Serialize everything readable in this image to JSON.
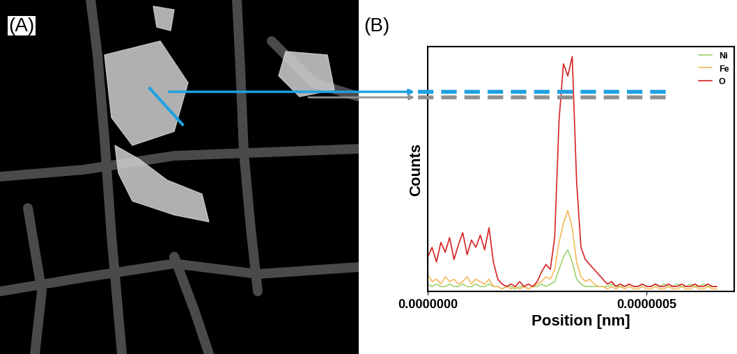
{
  "panel_labels": {
    "A": "(A)",
    "B": "(B)"
  },
  "chart_data": {
    "type": "line",
    "x_label": "Position [nm]",
    "y_label": "Counts",
    "x": [
      0.0,
      1e-08,
      2e-08,
      3e-08,
      4e-08,
      5e-08,
      6e-08,
      7e-08,
      8e-08,
      9e-08,
      1e-07,
      1.1e-07,
      1.2e-07,
      1.3e-07,
      1.4e-07,
      1.5e-07,
      1.6e-07,
      1.7e-07,
      1.8e-07,
      1.9e-07,
      2e-07,
      2.1e-07,
      2.2e-07,
      2.3e-07,
      2.4e-07,
      2.5e-07,
      2.6e-07,
      2.7e-07,
      2.8e-07,
      2.9e-07,
      3e-07,
      3.1e-07,
      3.2e-07,
      3.3e-07,
      3.4e-07,
      3.5e-07,
      3.6e-07,
      3.7e-07,
      3.8e-07,
      3.9e-07,
      4e-07,
      4.1e-07,
      4.2e-07,
      4.3e-07,
      4.4e-07,
      4.5e-07,
      4.6e-07,
      4.7e-07,
      4.8e-07,
      4.9e-07,
      5e-07,
      5.1e-07,
      5.2e-07,
      5.3e-07,
      5.4e-07,
      5.5e-07,
      5.6e-07,
      5.7e-07,
      5.8e-07,
      5.9e-07,
      6e-07,
      6.1e-07,
      6.2e-07,
      6.3e-07,
      6.4e-07,
      6.5e-07,
      6.6e-07
    ],
    "series": [
      {
        "name": "Ni",
        "color": "#9ed36a",
        "values": [
          3,
          2,
          3,
          2,
          2,
          3,
          2,
          2,
          3,
          2,
          2,
          3,
          2,
          2,
          3,
          2,
          2,
          1,
          2,
          2,
          1,
          2,
          2,
          1,
          2,
          2,
          3,
          2,
          3,
          4,
          9,
          14,
          17,
          12,
          5,
          3,
          2,
          2,
          2,
          2,
          2,
          2,
          3,
          2,
          2,
          2,
          3,
          2,
          2,
          3,
          2,
          2,
          3,
          2,
          3,
          2,
          2,
          3,
          2,
          2,
          3,
          2,
          2,
          3,
          2,
          2,
          2
        ]
      },
      {
        "name": "Fe",
        "color": "#f5b85a",
        "values": [
          7,
          4,
          5,
          3,
          6,
          4,
          5,
          3,
          4,
          6,
          3,
          5,
          4,
          3,
          5,
          2,
          2,
          1,
          2,
          1,
          2,
          1,
          2,
          1,
          2,
          3,
          4,
          6,
          5,
          9,
          20,
          28,
          33,
          26,
          12,
          6,
          4,
          5,
          3,
          2,
          2,
          1,
          2,
          1,
          2,
          1,
          2,
          1,
          1,
          2,
          1,
          1,
          2,
          1,
          1,
          2,
          1,
          1,
          2,
          1,
          1,
          2,
          1,
          1,
          2,
          1,
          1
        ]
      },
      {
        "name": "O",
        "color": "#d62020",
        "values": [
          14,
          18,
          12,
          20,
          16,
          22,
          13,
          19,
          24,
          15,
          21,
          18,
          23,
          17,
          26,
          12,
          5,
          3,
          2,
          3,
          2,
          4,
          2,
          3,
          2,
          4,
          8,
          11,
          9,
          22,
          70,
          93,
          88,
          96,
          45,
          18,
          13,
          11,
          9,
          7,
          5,
          3,
          4,
          2,
          3,
          2,
          3,
          2,
          2,
          3,
          2,
          2,
          3,
          2,
          2,
          3,
          2,
          2,
          3,
          2,
          2,
          3,
          2,
          2,
          3,
          2,
          2
        ]
      }
    ],
    "xlim": [
      0,
      7e-07
    ],
    "xticks": [
      {
        "value": 0,
        "label": "0.0000000"
      },
      {
        "value": 5e-07,
        "label": "0.0000005"
      }
    ],
    "ylim": [
      0,
      100
    ],
    "yticks": [],
    "tick_labels": "x",
    "legend": "upper right"
  }
}
